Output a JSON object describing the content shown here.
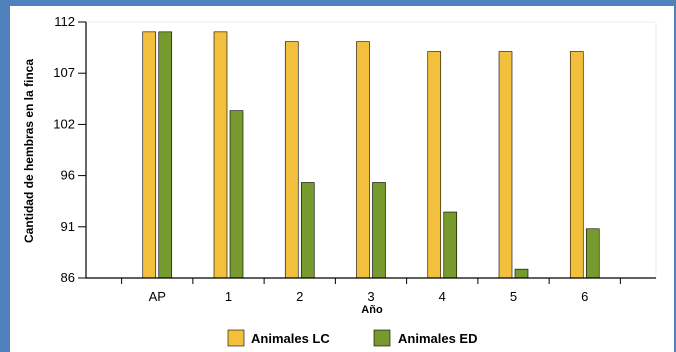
{
  "chart_data": {
    "type": "bar",
    "categories": [
      "AP",
      "1",
      "2",
      "3",
      "4",
      "5",
      "6"
    ],
    "series": [
      {
        "name": "Animales LC",
        "values": [
          111,
          111,
          110,
          110,
          109,
          109,
          109
        ],
        "color": "#f2c03c"
      },
      {
        "name": "Animales ED",
        "values": [
          111,
          103,
          95.7,
          95.7,
          92.7,
          86.9,
          91
        ]
      }
    ],
    "series_colors": [
      "#f2c03c",
      "#769a2e"
    ],
    "xlabel": "Año",
    "ylabel": "Cantidad de hembras en la finca",
    "yticks": [
      "86",
      "91",
      "96",
      "102",
      "107",
      "112"
    ],
    "ylim": [
      86,
      112
    ],
    "grid": false,
    "legend_position": "bottom"
  }
}
